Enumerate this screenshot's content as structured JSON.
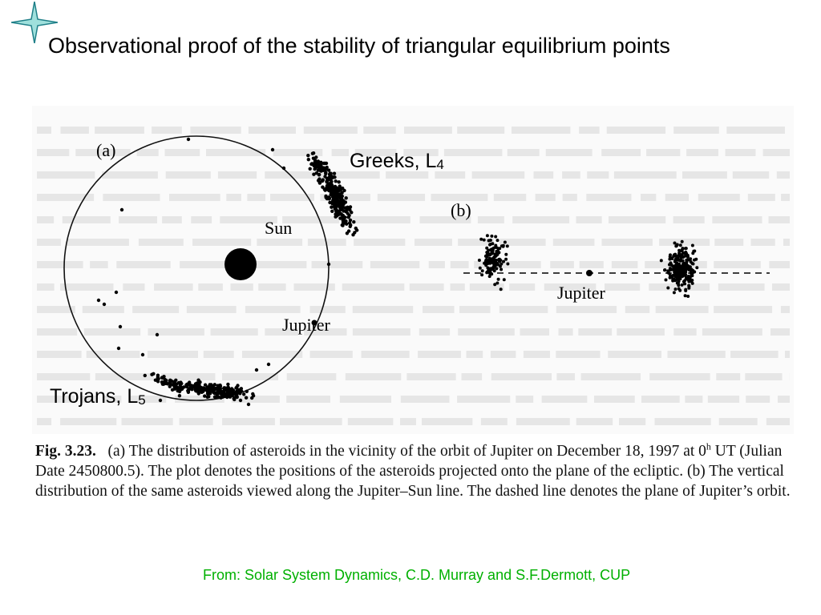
{
  "slide": {
    "title": "Observational proof of the stability of  triangular equilibrium points",
    "greeks_label": "Greeks, L",
    "greeks_sub": "4",
    "trojans_label": "Trojans, L",
    "trojans_sub": "5",
    "source": "From: Solar System Dynamics, C.D. Murray and S.F.Dermott, CUP"
  },
  "figure": {
    "panel_a": "(a)",
    "panel_b": "(b)",
    "sun": "Sun",
    "jupiter_a": "Jupiter",
    "jupiter_b": "Jupiter"
  },
  "caption": {
    "fig": "Fig. 3.23.",
    "part1": "(a) The distribution of asteroids in the vicinity of the orbit of Jupiter on December 18, 1997 at 0",
    "sup": "h",
    "part2": " UT (Julian Date 2450800.5).  The plot denotes the positions of the asteroids projected onto the plane of the ecliptic.  (b) The vertical distribution of the same asteroids viewed along the Jupiter–Sun line.  The dashed line denotes the plane of Jupiter’s orbit."
  },
  "colors": {
    "star": "#2a9d9a",
    "source_text": "#00b000"
  }
}
